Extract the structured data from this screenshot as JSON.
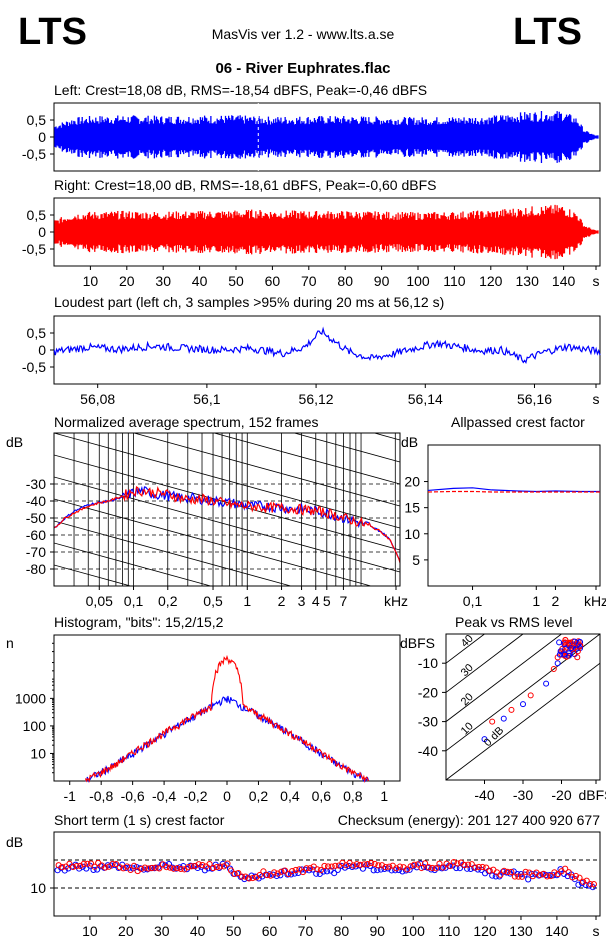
{
  "header": {
    "logo_left": "LTS",
    "logo_right": "LTS",
    "app_title": "MasVis ver 1.2 - www.lts.a.se",
    "file_title": "06 - River Euphrates.flac"
  },
  "colors": {
    "left_channel": "#0000ff",
    "right_channel": "#ff0000",
    "grid": "#000000"
  },
  "chart_data": [
    {
      "id": "left_waveform",
      "type": "area",
      "title": "Left: Crest=18,08 dB, RMS=-18,54 dBFS, Peak=-0,46 dBFS",
      "ytick_labels": [
        "0,5",
        "0",
        "-0,5"
      ],
      "ylim": [
        -1,
        1
      ],
      "xlim": [
        0,
        150
      ],
      "marker_at_s": 56.12,
      "envelope_seconds": [
        0,
        5,
        10,
        20,
        30,
        40,
        50,
        55,
        60,
        70,
        80,
        90,
        100,
        110,
        120,
        130,
        140,
        144,
        146,
        149
      ],
      "envelope_amplitude": [
        0.35,
        0.55,
        0.6,
        0.62,
        0.6,
        0.62,
        0.62,
        0.6,
        0.58,
        0.6,
        0.6,
        0.58,
        0.56,
        0.58,
        0.6,
        0.72,
        0.75,
        0.55,
        0.2,
        0.05
      ],
      "series": [
        {
          "name": "Left",
          "color": "#0000ff"
        }
      ]
    },
    {
      "id": "right_waveform",
      "type": "area",
      "title": "Right: Crest=18,00 dB, RMS=-18,61 dBFS, Peak=-0,60 dBFS",
      "ytick_labels": [
        "0,5",
        "0",
        "-0,5"
      ],
      "ylim": [
        -1,
        1
      ],
      "xlim": [
        0,
        150
      ],
      "x_tick_labels": [
        "10",
        "20",
        "30",
        "40",
        "50",
        "60",
        "70",
        "80",
        "90",
        "100",
        "110",
        "120",
        "130",
        "140",
        "s"
      ],
      "envelope_seconds": [
        0,
        5,
        10,
        20,
        30,
        40,
        50,
        55,
        60,
        70,
        80,
        90,
        100,
        110,
        120,
        130,
        140,
        144,
        146,
        149
      ],
      "envelope_amplitude": [
        0.35,
        0.55,
        0.58,
        0.6,
        0.58,
        0.6,
        0.62,
        0.64,
        0.62,
        0.6,
        0.6,
        0.58,
        0.56,
        0.58,
        0.62,
        0.72,
        0.78,
        0.55,
        0.2,
        0.05
      ],
      "series": [
        {
          "name": "Right",
          "color": "#ff0000"
        }
      ]
    },
    {
      "id": "loudest_part",
      "type": "line",
      "title": "Loudest part (left  ch, 3 samples >95% during 20 ms at 56,12 s)",
      "ytick_labels": [
        "0,5",
        "0",
        "-0,5"
      ],
      "ylim": [
        -1,
        1
      ],
      "xlim": [
        56.072,
        56.172
      ],
      "x_tick_labels": [
        "56,08",
        "56,1",
        "56,12",
        "56,14",
        "56,16",
        "s"
      ],
      "x_tick_values": [
        56.08,
        56.1,
        56.12,
        56.14,
        56.16
      ],
      "x": [
        56.072,
        56.078,
        56.084,
        56.09,
        56.096,
        56.102,
        56.108,
        56.114,
        56.118,
        56.121,
        56.123,
        56.126,
        56.13,
        56.134,
        56.138,
        56.142,
        56.146,
        56.15,
        56.154,
        56.158,
        56.162,
        56.166,
        56.172
      ],
      "y": [
        -0.05,
        0.08,
        0.02,
        0.12,
        0.05,
        0.0,
        0.05,
        -0.1,
        0.1,
        0.55,
        0.3,
        -0.05,
        -0.25,
        -0.12,
        0.05,
        0.2,
        0.1,
        -0.02,
        0.0,
        -0.3,
        -0.05,
        0.1,
        -0.05
      ],
      "series": [
        {
          "name": "Left",
          "color": "#0000ff"
        }
      ]
    },
    {
      "id": "avg_spectrum",
      "type": "line",
      "title": "Normalized average spectrum, 152 frames",
      "ylabel": "dB",
      "xlabel": "kHz",
      "log_x": true,
      "xlim_khz": [
        0.02,
        22
      ],
      "ylim_db": [
        -90,
        0
      ],
      "ytick_labels": [
        "-30",
        "-40",
        "-50",
        "-60",
        "-70",
        "-80"
      ],
      "ytick_values": [
        -30,
        -40,
        -50,
        -60,
        -70,
        -80
      ],
      "x_tick_labels": [
        "0,05",
        "0,1",
        "0,2",
        "0,5",
        "1",
        "2",
        "3",
        "4",
        "5",
        "7",
        "kHz"
      ],
      "x_tick_values": [
        0.05,
        0.1,
        0.2,
        0.5,
        1,
        2,
        3,
        4,
        5,
        7
      ],
      "x": [
        0.02,
        0.025,
        0.03,
        0.04,
        0.05,
        0.06,
        0.08,
        0.1,
        0.12,
        0.15,
        0.2,
        0.25,
        0.3,
        0.4,
        0.5,
        0.7,
        1,
        1.5,
        2,
        3,
        4,
        5,
        7,
        10,
        12,
        15,
        18,
        22
      ],
      "series": [
        {
          "name": "Left",
          "color": "#0000ff",
          "values": [
            -56,
            -50,
            -46,
            -42,
            -41,
            -40,
            -38,
            -35,
            -34,
            -36,
            -37,
            -38,
            -38,
            -39,
            -40,
            -41,
            -43,
            -43,
            -44,
            -45,
            -46,
            -47,
            -50,
            -53,
            -55,
            -58,
            -63,
            -75
          ]
        },
        {
          "name": "Right",
          "color": "#ff0000",
          "values": [
            -56,
            -50,
            -47,
            -43,
            -41,
            -40,
            -37,
            -34,
            -34,
            -35,
            -36,
            -38,
            -39,
            -39,
            -40,
            -42,
            -43,
            -44,
            -44,
            -45,
            -46,
            -47,
            -50,
            -53,
            -55,
            -58,
            -63,
            -76
          ]
        }
      ]
    },
    {
      "id": "allpassed_crest",
      "type": "line",
      "title": "Allpassed crest factor",
      "ylabel": "dB",
      "xlabel": "kHz",
      "log_x": true,
      "xlim_khz": [
        0.02,
        10
      ],
      "ylim_db": [
        0,
        27
      ],
      "ytick_labels": [
        "20",
        "15",
        "10",
        "5"
      ],
      "ytick_values": [
        20,
        15,
        10,
        5
      ],
      "x_tick_labels": [
        "0,1",
        "1",
        "2",
        "kHz"
      ],
      "x_tick_values": [
        0.1,
        1,
        2
      ],
      "x": [
        0.02,
        0.05,
        0.1,
        0.2,
        0.5,
        1,
        2,
        5,
        10
      ],
      "series": [
        {
          "name": "Left",
          "color": "#0000ff",
          "values": [
            18.3,
            18.7,
            18.8,
            18.4,
            18.2,
            18.1,
            18.2,
            18.1,
            18.1
          ]
        },
        {
          "name": "Right",
          "color": "#ff0000",
          "values": [
            18.0,
            18.1,
            18.1,
            18.0,
            18.0,
            18.0,
            18.0,
            18.0,
            18.0
          ]
        }
      ]
    },
    {
      "id": "histogram",
      "type": "line",
      "title": "Histogram, \"bits\": 15,2/15,2",
      "ylabel": "n",
      "log_y": true,
      "xlim": [
        -1.1,
        1.1
      ],
      "ylim": [
        1,
        200000
      ],
      "ytick_labels": [
        "1000",
        "100",
        "10"
      ],
      "ytick_values": [
        1000,
        100,
        10
      ],
      "x_tick_labels": [
        "-1",
        "-0,8",
        "-0,6",
        "-0,4",
        "-0,2",
        "0",
        "0,2",
        "0,4",
        "0,6",
        "0,8",
        "1"
      ],
      "x_tick_values": [
        -1,
        -0.8,
        -0.6,
        -0.4,
        -0.2,
        0,
        0.2,
        0.4,
        0.6,
        0.8,
        1
      ],
      "x": [
        -0.9,
        -0.8,
        -0.7,
        -0.6,
        -0.5,
        -0.4,
        -0.3,
        -0.2,
        -0.1,
        0,
        0.1,
        0.2,
        0.3,
        0.4,
        0.5,
        0.6,
        0.7,
        0.8,
        0.9
      ],
      "series": [
        {
          "name": "Left",
          "color": "#0000ff",
          "values": [
            1,
            2,
            4,
            9,
            22,
            50,
            110,
            230,
            480,
            1000,
            480,
            230,
            110,
            50,
            22,
            9,
            4,
            2,
            1
          ]
        },
        {
          "name": "Right",
          "color": "#ff0000",
          "values": [
            1,
            2,
            4,
            10,
            24,
            52,
            115,
            240,
            500,
            30000,
            500,
            240,
            115,
            52,
            24,
            10,
            4,
            2,
            1
          ]
        }
      ]
    },
    {
      "id": "peak_vs_rms",
      "type": "scatter",
      "title": "Peak vs RMS level",
      "ylabel": "dBFS",
      "xlabel": "dBFS",
      "xlim": [
        -50,
        -10
      ],
      "ylim": [
        -50,
        0
      ],
      "ytick_labels": [
        "-10",
        "-20",
        "-30",
        "-40"
      ],
      "ytick_values": [
        -10,
        -20,
        -30,
        -40
      ],
      "x_tick_labels": [
        "-40",
        "-30",
        "-20",
        "dBFS"
      ],
      "x_tick_values": [
        -40,
        -30,
        -20
      ],
      "crest_line_labels": [
        "40",
        "30",
        "20",
        "10",
        "0 dB"
      ],
      "crest_line_values": [
        40,
        30,
        20,
        10,
        0
      ],
      "series": [
        {
          "name": "Left",
          "color": "#0000ff",
          "x": [
            -40,
            -35,
            -30,
            -24,
            -21,
            -20,
            -19,
            -18,
            -20,
            -19,
            -17,
            -16
          ],
          "y": [
            -36,
            -29,
            -24,
            -17,
            -10,
            -7,
            -5,
            -4,
            -6,
            -3,
            -4,
            -3
          ]
        },
        {
          "name": "Right",
          "color": "#ff0000",
          "x": [
            -38,
            -33,
            -28,
            -22,
            -21,
            -20,
            -19,
            -18,
            -17,
            -19,
            -20,
            -18
          ],
          "y": [
            -30,
            -26,
            -21,
            -12,
            -8,
            -6,
            -4,
            -3,
            -5,
            -2,
            -7,
            -6
          ]
        }
      ]
    },
    {
      "id": "short_term_crest",
      "type": "scatter",
      "title": "Short term (1 s) crest factor",
      "checksum_text": "Checksum (energy):   201 127 400 920 677",
      "ylabel": "dB",
      "xlim": [
        0,
        152
      ],
      "ylim": [
        0,
        30
      ],
      "ytick_labels": [
        "10"
      ],
      "ytick_values": [
        10
      ],
      "ref_lines": [
        10,
        20
      ],
      "x_tick_labels": [
        "10",
        "20",
        "30",
        "40",
        "50",
        "60",
        "70",
        "80",
        "90",
        "100",
        "110",
        "120",
        "130",
        "140",
        "s"
      ],
      "x": [
        2,
        8,
        12,
        18,
        22,
        28,
        32,
        38,
        42,
        48,
        52,
        58,
        62,
        68,
        72,
        78,
        82,
        88,
        92,
        98,
        102,
        108,
        112,
        118,
        122,
        128,
        132,
        138,
        142,
        146,
        150
      ],
      "series": [
        {
          "name": "Left",
          "color": "#0000ff",
          "values": [
            17,
            18,
            17,
            18,
            17,
            17,
            18,
            17,
            17,
            18,
            14,
            14,
            15,
            16,
            16,
            16,
            18,
            17,
            17,
            16,
            18,
            17,
            18,
            17,
            15,
            15,
            14,
            15,
            16,
            12,
            11
          ]
        },
        {
          "name": "Right",
          "color": "#ff0000",
          "values": [
            18,
            18,
            18,
            18,
            17,
            17,
            18,
            17,
            18,
            18,
            14,
            15,
            15,
            16,
            17,
            17,
            19,
            18,
            18,
            17,
            18,
            18,
            19,
            18,
            16,
            15,
            15,
            15,
            16,
            13,
            12
          ]
        }
      ]
    }
  ]
}
